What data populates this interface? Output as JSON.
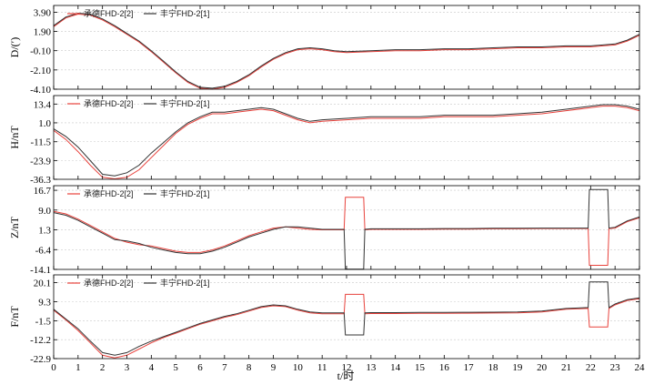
{
  "chart_data": [
    {
      "type": "line",
      "ylabel": "D/(′)",
      "yticks": [
        3.9,
        1.9,
        -0.1,
        -2.1,
        -4.1
      ],
      "ytick_labels": [
        "3.90",
        "1.90",
        "-0.10",
        "-2.10",
        "-4.10"
      ],
      "ylim": [
        -4.1,
        4.6
      ],
      "xlim": [
        0,
        24
      ],
      "grid": true,
      "legend_position": "top-left",
      "series": [
        {
          "name": "承德FHD-2[2]",
          "color": "#e8423c",
          "x": [
            0,
            0.5,
            1,
            1.5,
            2,
            2.5,
            3,
            3.5,
            4,
            4.5,
            5,
            5.5,
            6,
            6.5,
            7,
            7.5,
            8,
            8.5,
            9,
            9.5,
            10,
            10.5,
            11,
            11.5,
            12,
            13,
            14,
            15,
            16,
            17,
            18,
            19,
            20,
            21,
            21.5,
            22,
            22.5,
            23,
            23.5,
            24
          ],
          "y": [
            2.4,
            3.3,
            3.7,
            3.6,
            3.1,
            2.4,
            1.6,
            0.8,
            -0.2,
            -1.3,
            -2.4,
            -3.4,
            -4.0,
            -4.1,
            -3.9,
            -3.4,
            -2.7,
            -1.8,
            -1.0,
            -0.4,
            0.0,
            0.1,
            0.0,
            -0.2,
            -0.3,
            -0.2,
            -0.1,
            -0.1,
            0.0,
            0.0,
            0.1,
            0.2,
            0.2,
            0.3,
            0.3,
            0.3,
            0.4,
            0.5,
            0.9,
            1.5
          ]
        },
        {
          "name": "丰宁FHD-2[1]",
          "color": "#333333",
          "x": [
            0,
            0.5,
            1,
            1.5,
            2,
            2.5,
            3,
            3.5,
            4,
            4.5,
            5,
            5.5,
            6,
            6.5,
            7,
            7.5,
            8,
            8.5,
            9,
            9.5,
            10,
            10.5,
            11,
            11.5,
            12,
            13,
            14,
            15,
            16,
            17,
            18,
            19,
            20,
            21,
            21.5,
            22,
            22.5,
            23,
            23.5,
            24
          ],
          "y": [
            2.5,
            3.4,
            3.8,
            3.7,
            3.2,
            2.5,
            1.7,
            0.9,
            -0.1,
            -1.2,
            -2.3,
            -3.3,
            -3.9,
            -4.0,
            -3.8,
            -3.3,
            -2.6,
            -1.7,
            -0.9,
            -0.3,
            0.1,
            0.2,
            0.1,
            -0.1,
            -0.2,
            -0.1,
            0.0,
            0.0,
            0.1,
            0.1,
            0.2,
            0.3,
            0.3,
            0.4,
            0.4,
            0.4,
            0.5,
            0.6,
            1.0,
            1.6
          ]
        }
      ]
    },
    {
      "type": "line",
      "ylabel": "H/nT",
      "yticks": [
        13.4,
        1.0,
        -11.5,
        -23.9,
        -36.3
      ],
      "ytick_labels": [
        "13.4",
        "1.0",
        "-11.5",
        "-23.9",
        "-36.3"
      ],
      "ylim": [
        -36.3,
        19.0
      ],
      "xlim": [
        0,
        24
      ],
      "grid": true,
      "legend_position": "top-left",
      "series": [
        {
          "name": "承德FHD-2[2]",
          "color": "#e8423c",
          "x": [
            0,
            0.5,
            1,
            1.5,
            2,
            2.5,
            3,
            3.5,
            4,
            4.5,
            5,
            5.5,
            6,
            6.5,
            7,
            7.5,
            8,
            8.5,
            9,
            9.5,
            10,
            10.5,
            11,
            12,
            13,
            14,
            15,
            16,
            17,
            18,
            19,
            20,
            21,
            22,
            22.5,
            23,
            23.5,
            24
          ],
          "y": [
            -4,
            -10,
            -18,
            -27,
            -35,
            -36,
            -35,
            -30,
            -22,
            -14,
            -6,
            0,
            4,
            7,
            7,
            8,
            9,
            10,
            9,
            6,
            3,
            1,
            2,
            3,
            4,
            4,
            4,
            5,
            5,
            5,
            6,
            7,
            9,
            11,
            12,
            12,
            11,
            9
          ]
        },
        {
          "name": "丰宁FHD-2[1]",
          "color": "#333333",
          "x": [
            0,
            0.5,
            1,
            1.5,
            2,
            2.5,
            3,
            3.5,
            4,
            4.5,
            5,
            5.5,
            6,
            6.5,
            7,
            7.5,
            8,
            8.5,
            9,
            9.5,
            10,
            10.5,
            11,
            12,
            13,
            14,
            15,
            16,
            17,
            18,
            19,
            20,
            21,
            22,
            22.5,
            23,
            23.5,
            24
          ],
          "y": [
            -3,
            -8,
            -15,
            -24,
            -33,
            -34,
            -32,
            -27,
            -19,
            -12,
            -5,
            1,
            5,
            8,
            8,
            9,
            10,
            11,
            10,
            7,
            4,
            2,
            3,
            4,
            5,
            5,
            5,
            6,
            6,
            6,
            7,
            8,
            10,
            12,
            13,
            13,
            12,
            10
          ]
        }
      ]
    },
    {
      "type": "line",
      "ylabel": "Z/nT",
      "yticks": [
        16.7,
        9.0,
        1.3,
        -6.4,
        -14.1
      ],
      "ytick_labels": [
        "16.7",
        "9.0",
        "1.3",
        "-6.4",
        "-14.1"
      ],
      "ylim": [
        -14.1,
        18.5
      ],
      "xlim": [
        0,
        24
      ],
      "grid": true,
      "legend_position": "top-left",
      "series": [
        {
          "name": "承德FHD-2[2]",
          "color": "#e8423c",
          "x": [
            0,
            0.5,
            1,
            1.5,
            2,
            2.5,
            3,
            3.5,
            4,
            4.5,
            5,
            5.5,
            6,
            6.5,
            7,
            7.5,
            8,
            8.5,
            9,
            9.5,
            10,
            10.5,
            11,
            11.5,
            11.9,
            11.95,
            12.7,
            12.75,
            13,
            14,
            15,
            16,
            17,
            18,
            19,
            20,
            21,
            21.9,
            21.95,
            22.7,
            22.75,
            23,
            23.5,
            24
          ],
          "y": [
            8.5,
            7.5,
            5.5,
            3.0,
            0.5,
            -2.0,
            -3.5,
            -4.5,
            -5.0,
            -6.0,
            -7.0,
            -7.5,
            -7.5,
            -6.5,
            -5.0,
            -3.0,
            -1.0,
            0.5,
            2.0,
            2.5,
            2.0,
            1.5,
            1.3,
            1.3,
            1.3,
            14.0,
            14.0,
            1.3,
            1.5,
            1.5,
            1.5,
            1.6,
            1.6,
            1.7,
            1.7,
            1.8,
            1.8,
            1.8,
            -12.5,
            -12.5,
            1.8,
            2.0,
            4.5,
            6.0
          ]
        },
        {
          "name": "丰宁FHD-2[1]",
          "color": "#333333",
          "x": [
            0,
            0.5,
            1,
            1.5,
            2,
            2.5,
            3,
            3.5,
            4,
            4.5,
            5,
            5.5,
            6,
            6.5,
            7,
            7.5,
            8,
            8.5,
            9,
            9.5,
            10,
            10.5,
            11,
            11.5,
            11.9,
            11.95,
            12.7,
            12.75,
            13,
            14,
            15,
            16,
            17,
            18,
            19,
            20,
            21,
            21.9,
            21.95,
            22.7,
            22.75,
            23,
            23.5,
            24
          ],
          "y": [
            8.0,
            7.0,
            5.0,
            2.5,
            0.0,
            -2.5,
            -3.0,
            -4.0,
            -5.5,
            -6.5,
            -7.5,
            -8.0,
            -8.0,
            -7.0,
            -5.5,
            -3.5,
            -1.5,
            0.0,
            1.5,
            2.5,
            2.5,
            2.0,
            1.5,
            1.5,
            1.5,
            -14.0,
            -14.0,
            1.5,
            1.7,
            1.7,
            1.7,
            1.8,
            1.8,
            1.9,
            1.9,
            2.0,
            2.0,
            2.0,
            17.0,
            17.0,
            2.0,
            2.3,
            4.8,
            6.3
          ]
        }
      ]
    },
    {
      "type": "line",
      "ylabel": "F/nT",
      "yticks": [
        20.1,
        9.3,
        -1.5,
        -12.2,
        -22.9
      ],
      "ytick_labels": [
        "20.1",
        "9.3",
        "-1.5",
        "-12.2",
        "-22.9"
      ],
      "ylim": [
        -22.9,
        24.5
      ],
      "xlim": [
        0,
        24
      ],
      "grid": true,
      "legend_position": "top-left",
      "series": [
        {
          "name": "承德FHD-2[2]",
          "color": "#e8423c",
          "x": [
            0,
            0.5,
            1,
            1.5,
            2,
            2.5,
            3,
            3.5,
            4,
            4.5,
            5,
            5.5,
            6,
            6.5,
            7,
            7.5,
            8,
            8.5,
            9,
            9.5,
            10,
            10.5,
            11,
            11.5,
            11.9,
            11.95,
            12.7,
            12.75,
            13,
            14,
            15,
            16,
            17,
            18,
            19,
            20,
            21,
            21.9,
            21.95,
            22.7,
            22.75,
            23,
            23.5,
            24
          ],
          "y": [
            4.5,
            -1.0,
            -7.0,
            -14.0,
            -21.0,
            -22.5,
            -21.0,
            -17.5,
            -14.0,
            -11.0,
            -8.5,
            -6.0,
            -3.5,
            -1.5,
            0.5,
            2.0,
            4.0,
            6.0,
            7.0,
            6.5,
            4.5,
            3.0,
            2.5,
            2.5,
            2.5,
            13.5,
            13.5,
            2.5,
            2.6,
            2.6,
            2.7,
            2.7,
            2.8,
            2.9,
            3.0,
            3.5,
            5.0,
            5.5,
            -5.0,
            -5.0,
            5.5,
            7.5,
            10.0,
            11.0
          ]
        },
        {
          "name": "丰宁FHD-2[1]",
          "color": "#333333",
          "x": [
            0,
            0.5,
            1,
            1.5,
            2,
            2.5,
            3,
            3.5,
            4,
            4.5,
            5,
            5.5,
            6,
            6.5,
            7,
            7.5,
            8,
            8.5,
            9,
            9.5,
            10,
            10.5,
            11,
            11.5,
            11.9,
            11.95,
            12.7,
            12.75,
            13,
            14,
            15,
            16,
            17,
            18,
            19,
            20,
            21,
            21.9,
            21.95,
            22.7,
            22.75,
            23,
            23.5,
            24
          ],
          "y": [
            5.0,
            -0.5,
            -6.0,
            -13.0,
            -19.5,
            -21.0,
            -19.5,
            -16.0,
            -13.0,
            -10.5,
            -8.0,
            -5.5,
            -3.0,
            -1.0,
            1.0,
            2.5,
            4.5,
            6.5,
            7.5,
            7.0,
            5.0,
            3.5,
            3.0,
            3.0,
            3.0,
            -9.5,
            -9.5,
            3.0,
            3.1,
            3.1,
            3.2,
            3.2,
            3.3,
            3.4,
            3.5,
            4.0,
            5.5,
            6.0,
            20.5,
            20.5,
            6.0,
            8.0,
            10.5,
            11.5
          ]
        }
      ]
    }
  ],
  "x_axis": {
    "label": "t/时",
    "ticks": [
      0,
      1,
      2,
      3,
      4,
      5,
      6,
      7,
      8,
      9,
      10,
      11,
      12,
      13,
      14,
      15,
      16,
      17,
      18,
      19,
      20,
      21,
      22,
      23,
      24
    ],
    "tick_labels": [
      "0",
      "1",
      "2",
      "3",
      "4",
      "5",
      "6",
      "7",
      "8",
      "9",
      "10",
      "11",
      "12",
      "13",
      "14",
      "15",
      "16",
      "17",
      "18",
      "19",
      "20",
      "21",
      "22",
      "23",
      "24"
    ]
  }
}
